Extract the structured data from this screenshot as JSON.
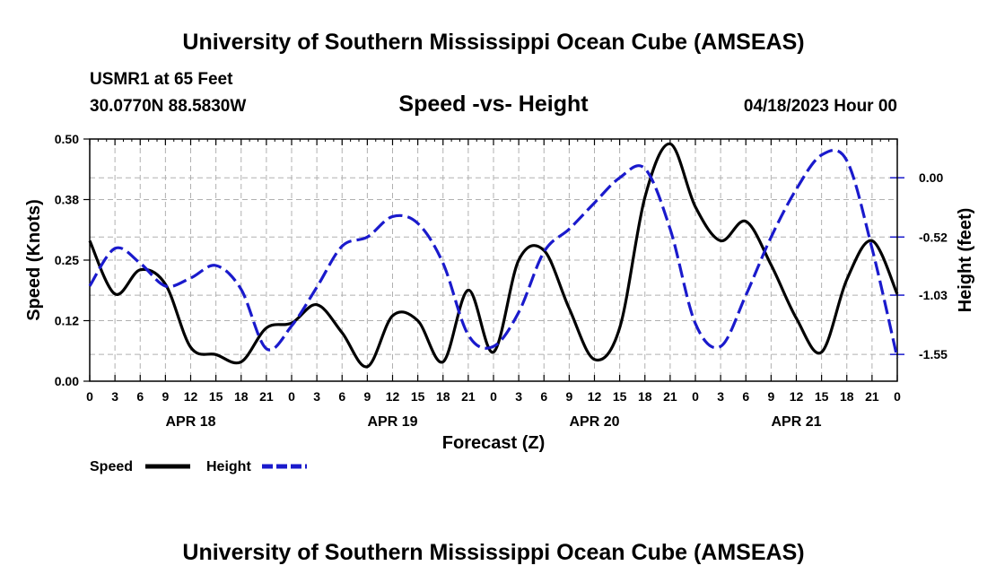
{
  "header": {
    "title": "University of Southern Mississippi Ocean Cube (AMSEAS)",
    "station": "USMR1 at 65 Feet",
    "coords": "30.0770N  88.5830W",
    "chart_title": "Speed -vs- Height",
    "date": "04/18/2023 Hour 00"
  },
  "footer": {
    "title": "University of Southern Mississippi Ocean Cube (AMSEAS)"
  },
  "colors": {
    "speed": "#000000",
    "height": "#1a1acc",
    "grid": "#b0b0b0"
  },
  "chart_data": {
    "type": "line",
    "title": "Speed -vs- Height",
    "xlabel": "Forecast (Z)",
    "ylabel": "Speed (Knots)",
    "y2label": "Height (feet)",
    "x_range": [
      0,
      96
    ],
    "ylim": [
      0,
      0.5
    ],
    "y2lim": [
      -1.785,
      0.34
    ],
    "yticks": [
      "0.00",
      "0.12",
      "0.25",
      "0.38",
      "0.50"
    ],
    "yticks_values": [
      0,
      0.125,
      0.25,
      0.375,
      0.5
    ],
    "y2ticks": [
      "0.00",
      "-0.52",
      "-1.03",
      "-1.55"
    ],
    "y2ticks_values": [
      0,
      -0.52,
      -1.03,
      -1.55
    ],
    "xtick_hours": [
      0,
      3,
      6,
      9,
      12,
      15,
      18,
      21,
      24,
      27,
      30,
      33,
      36,
      39,
      42,
      45,
      48,
      51,
      54,
      57,
      60,
      63,
      66,
      69,
      72,
      75,
      78,
      81,
      84,
      87,
      90,
      93,
      96
    ],
    "xtick_labels": [
      "0",
      "3",
      "6",
      "9",
      "12",
      "15",
      "18",
      "21",
      "0",
      "3",
      "6",
      "9",
      "12",
      "15",
      "18",
      "21",
      "0",
      "3",
      "6",
      "9",
      "12",
      "15",
      "18",
      "21",
      "0",
      "3",
      "6",
      "9",
      "12",
      "15",
      "18",
      "21",
      "0"
    ],
    "day_labels": [
      {
        "label": "APR 18",
        "hour": 12
      },
      {
        "label": "APR 19",
        "hour": 36
      },
      {
        "label": "APR 20",
        "hour": 60
      },
      {
        "label": "APR 21",
        "hour": 84
      }
    ],
    "series": [
      {
        "name": "Speed",
        "axis": "left",
        "style": "solid",
        "x": [
          0,
          3,
          6,
          9,
          12,
          15,
          18,
          21,
          24,
          27,
          30,
          33,
          36,
          39,
          42,
          45,
          48,
          51,
          54,
          57,
          60,
          63,
          66,
          69,
          72,
          75,
          78,
          81,
          84,
          87,
          90,
          93,
          96
        ],
        "values": [
          0.29,
          0.18,
          0.23,
          0.2,
          0.07,
          0.055,
          0.04,
          0.11,
          0.12,
          0.158,
          0.1,
          0.03,
          0.135,
          0.125,
          0.04,
          0.188,
          0.06,
          0.25,
          0.27,
          0.15,
          0.045,
          0.11,
          0.38,
          0.49,
          0.36,
          0.29,
          0.33,
          0.24,
          0.13,
          0.06,
          0.21,
          0.29,
          0.18
        ]
      },
      {
        "name": "Height",
        "axis": "right",
        "style": "dashed",
        "x": [
          0,
          3,
          6,
          9,
          12,
          15,
          18,
          21,
          24,
          27,
          30,
          33,
          36,
          39,
          42,
          45,
          48,
          51,
          54,
          57,
          60,
          63,
          66,
          69,
          72,
          75,
          78,
          81,
          84,
          87,
          90,
          93,
          96
        ],
        "values": [
          -0.95,
          -0.62,
          -0.75,
          -0.95,
          -0.88,
          -0.77,
          -0.98,
          -1.5,
          -1.3,
          -0.96,
          -0.6,
          -0.52,
          -0.34,
          -0.4,
          -0.75,
          -1.38,
          -1.48,
          -1.18,
          -0.65,
          -0.45,
          -0.22,
          0.0,
          0.08,
          -0.45,
          -1.28,
          -1.48,
          -1.03,
          -0.52,
          -0.1,
          0.2,
          0.15,
          -0.62,
          -1.58
        ]
      }
    ],
    "legend": {
      "position": "bottom-left",
      "entries": [
        "Speed",
        "Height"
      ]
    }
  }
}
